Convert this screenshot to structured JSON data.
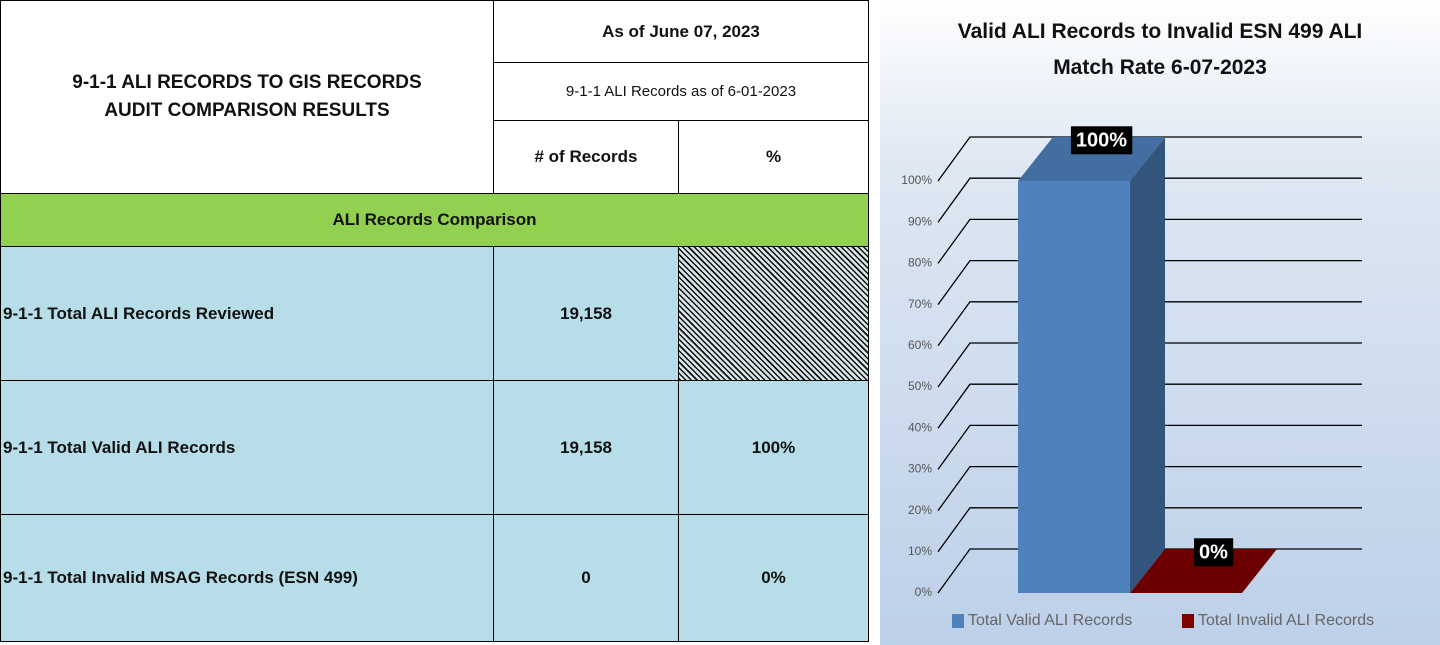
{
  "table": {
    "title": "9-1-1 ALI RECORDS TO GIS RECORDS AUDIT COMPARISON RESULTS",
    "as_of": "As of June 07, 2023",
    "subtitle": "9-1-1 ALI Records as of 6-01-2023",
    "columns": [
      "# of Records",
      "%"
    ],
    "section": "ALI Records Comparison",
    "rows": [
      {
        "label": "9-1-1 Total ALI Records Reviewed",
        "records": "19,158"
      },
      {
        "label": "9-1-1 Total Valid ALI Records",
        "records": "19,158",
        "percent": "100%"
      },
      {
        "label": "9-1-1 Total Invalid MSAG Records (ESN 499)",
        "records": "0",
        "percent": "0%"
      }
    ]
  },
  "chart_data": {
    "type": "bar",
    "title": "Valid ALI Records to Invalid ESN 499 ALI Match Rate 6-07-2023",
    "categories": [
      null
    ],
    "series": [
      {
        "name": "Total Valid ALI Records",
        "color": "#4f81bd",
        "values": [
          100
        ],
        "value_labels": [
          "100%"
        ]
      },
      {
        "name": "Total Invalid ALI Records",
        "color": "#7f0000",
        "values": [
          0
        ],
        "value_labels": [
          "0%"
        ]
      }
    ],
    "ylim": [
      0,
      100
    ],
    "yticks": [
      {
        "value": 0,
        "label": "0%"
      },
      {
        "value": 10,
        "label": "10%"
      },
      {
        "value": 20,
        "label": "20%"
      },
      {
        "value": 30,
        "label": "30%"
      },
      {
        "value": 40,
        "label": "40%"
      },
      {
        "value": 50,
        "label": "50%"
      },
      {
        "value": 60,
        "label": "60%"
      },
      {
        "value": 70,
        "label": "70%"
      },
      {
        "value": 80,
        "label": "80%"
      },
      {
        "value": 90,
        "label": "90%"
      },
      {
        "value": 100,
        "label": "100%"
      }
    ],
    "grid": true,
    "legend": "bottom"
  }
}
